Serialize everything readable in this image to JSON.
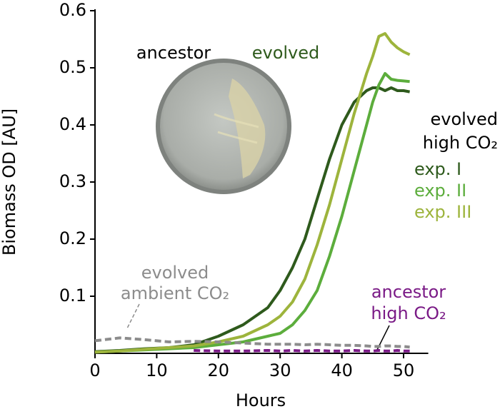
{
  "chart_data": {
    "type": "line",
    "xlabel": "Hours",
    "ylabel": "Biomass OD [AU]",
    "xlim": [
      0,
      54
    ],
    "ylim": [
      0,
      0.6
    ],
    "xticks": [
      0,
      10,
      20,
      30,
      40,
      50
    ],
    "yticks": [
      0.1,
      0.2,
      0.3,
      0.4,
      0.5,
      0.6
    ],
    "x": [
      0,
      4,
      8,
      12,
      16,
      20,
      24,
      28,
      30,
      32,
      34,
      36,
      38,
      40,
      42,
      44,
      45,
      46,
      47,
      48,
      49,
      50,
      51
    ],
    "series": [
      {
        "name": "exp. I",
        "color": "#2e5a1c",
        "dashed": false,
        "values": [
          0.003,
          0.005,
          0.008,
          0.01,
          0.015,
          0.03,
          0.05,
          0.08,
          0.11,
          0.15,
          0.2,
          0.27,
          0.34,
          0.4,
          0.44,
          0.46,
          0.465,
          0.465,
          0.46,
          0.465,
          0.46,
          0.46,
          0.458
        ]
      },
      {
        "name": "exp. II",
        "color": "#5cad3c",
        "dashed": false,
        "values": [
          0.002,
          0.004,
          0.006,
          0.008,
          0.01,
          0.015,
          0.02,
          0.03,
          0.035,
          0.05,
          0.075,
          0.11,
          0.17,
          0.24,
          0.32,
          0.4,
          0.44,
          0.47,
          0.49,
          0.48,
          0.478,
          0.477,
          0.476
        ]
      },
      {
        "name": "exp. III",
        "color": "#9db43c",
        "dashed": false,
        "values": [
          0.002,
          0.004,
          0.007,
          0.01,
          0.013,
          0.02,
          0.03,
          0.05,
          0.065,
          0.09,
          0.13,
          0.19,
          0.26,
          0.34,
          0.42,
          0.49,
          0.52,
          0.555,
          0.56,
          0.545,
          0.535,
          0.528,
          0.523
        ]
      },
      {
        "name": "evolved ambient CO₂",
        "color": "#8c8c8c",
        "dashed": true,
        "values": [
          0.022,
          0.027,
          0.024,
          0.02,
          0.021,
          0.02,
          0.018,
          0.016,
          0.016,
          0.016,
          0.015,
          0.016,
          0.015,
          0.014,
          0.014,
          0.013,
          0.012,
          0.012,
          0.013,
          0.013,
          0.012,
          0.012,
          0.011
        ]
      },
      {
        "name": "ancestor high CO₂",
        "color": "#7a1a86",
        "dashed": true,
        "values": [
          null,
          null,
          null,
          null,
          0.005,
          0.004,
          0.004,
          0.005,
          0.004,
          0.005,
          0.004,
          0.005,
          0.004,
          0.004,
          0.005,
          0.004,
          0.004,
          0.005,
          0.004,
          0.004,
          0.005,
          0.004,
          0.004
        ]
      }
    ],
    "annotations": [
      {
        "lines": [
          "ancestor"
        ],
        "color": "#000000"
      },
      {
        "lines": [
          "evolved"
        ],
        "color": "#2e5a1c"
      },
      {
        "lines": [
          "evolved",
          "high CO₂"
        ],
        "color": "#000000"
      }
    ]
  }
}
